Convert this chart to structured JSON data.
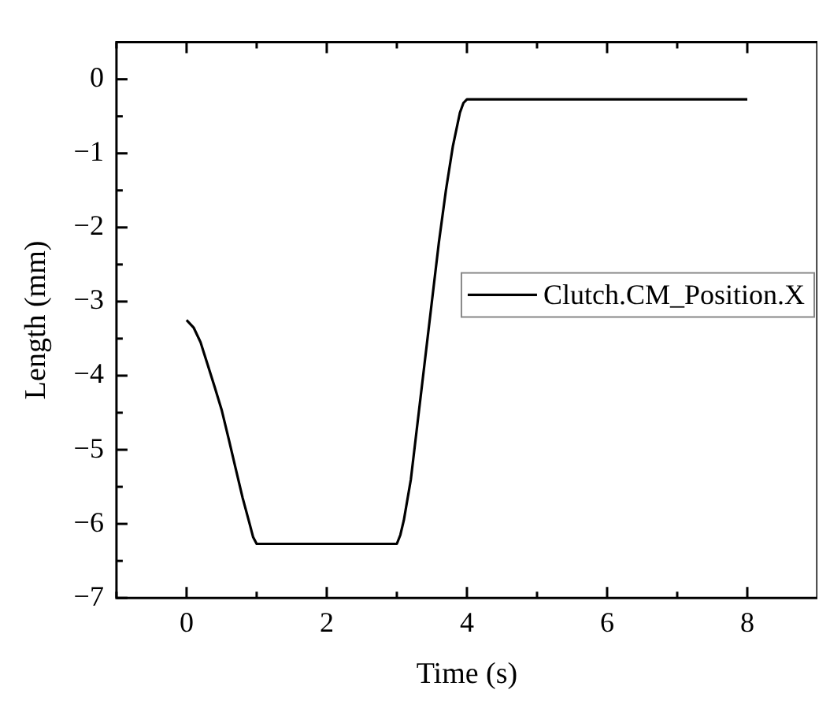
{
  "chart_data": {
    "type": "line",
    "xlabel": "Time (s)",
    "ylabel": "Length (mm)",
    "xlim": [
      -1,
      9
    ],
    "ylim": [
      -7,
      0.5
    ],
    "xticks": [
      {
        "value": -1,
        "label": null
      },
      0,
      {
        "value": 1,
        "label": null
      },
      2,
      {
        "value": 3,
        "label": null
      },
      4,
      {
        "value": 5,
        "label": null
      },
      6,
      {
        "value": 7,
        "label": null
      },
      8
    ],
    "yticks": [
      -7,
      {
        "value": -6.5,
        "label": null
      },
      -6,
      {
        "value": -5.5,
        "label": null
      },
      -5,
      {
        "value": -4.5,
        "label": null
      },
      -4,
      {
        "value": -3.5,
        "label": null
      },
      -3,
      {
        "value": -2.5,
        "label": null
      },
      -2,
      {
        "value": -1.5,
        "label": null
      },
      -1,
      {
        "value": -0.5,
        "label": null
      },
      0
    ],
    "grid": false,
    "legend": "right",
    "marker": "none",
    "line_style": "solid",
    "series": [
      {
        "name": "Clutch.CM_Position.X",
        "color": "#000000",
        "x": [
          0,
          0.1,
          0.2,
          0.3,
          0.4,
          0.5,
          0.6,
          0.7,
          0.8,
          0.9,
          0.95,
          1.0,
          3.0,
          3.05,
          3.1,
          3.2,
          3.3,
          3.4,
          3.5,
          3.6,
          3.7,
          3.8,
          3.9,
          3.95,
          4.0,
          8.0
        ],
        "values": [
          -3.25,
          -3.35,
          -3.55,
          -3.85,
          -4.15,
          -4.46,
          -4.85,
          -5.25,
          -5.65,
          -6.0,
          -6.18,
          -6.27,
          -6.27,
          -6.15,
          -5.95,
          -5.4,
          -4.6,
          -3.8,
          -3.0,
          -2.2,
          -1.5,
          -0.9,
          -0.45,
          -0.32,
          -0.27,
          -0.27
        ]
      }
    ]
  }
}
